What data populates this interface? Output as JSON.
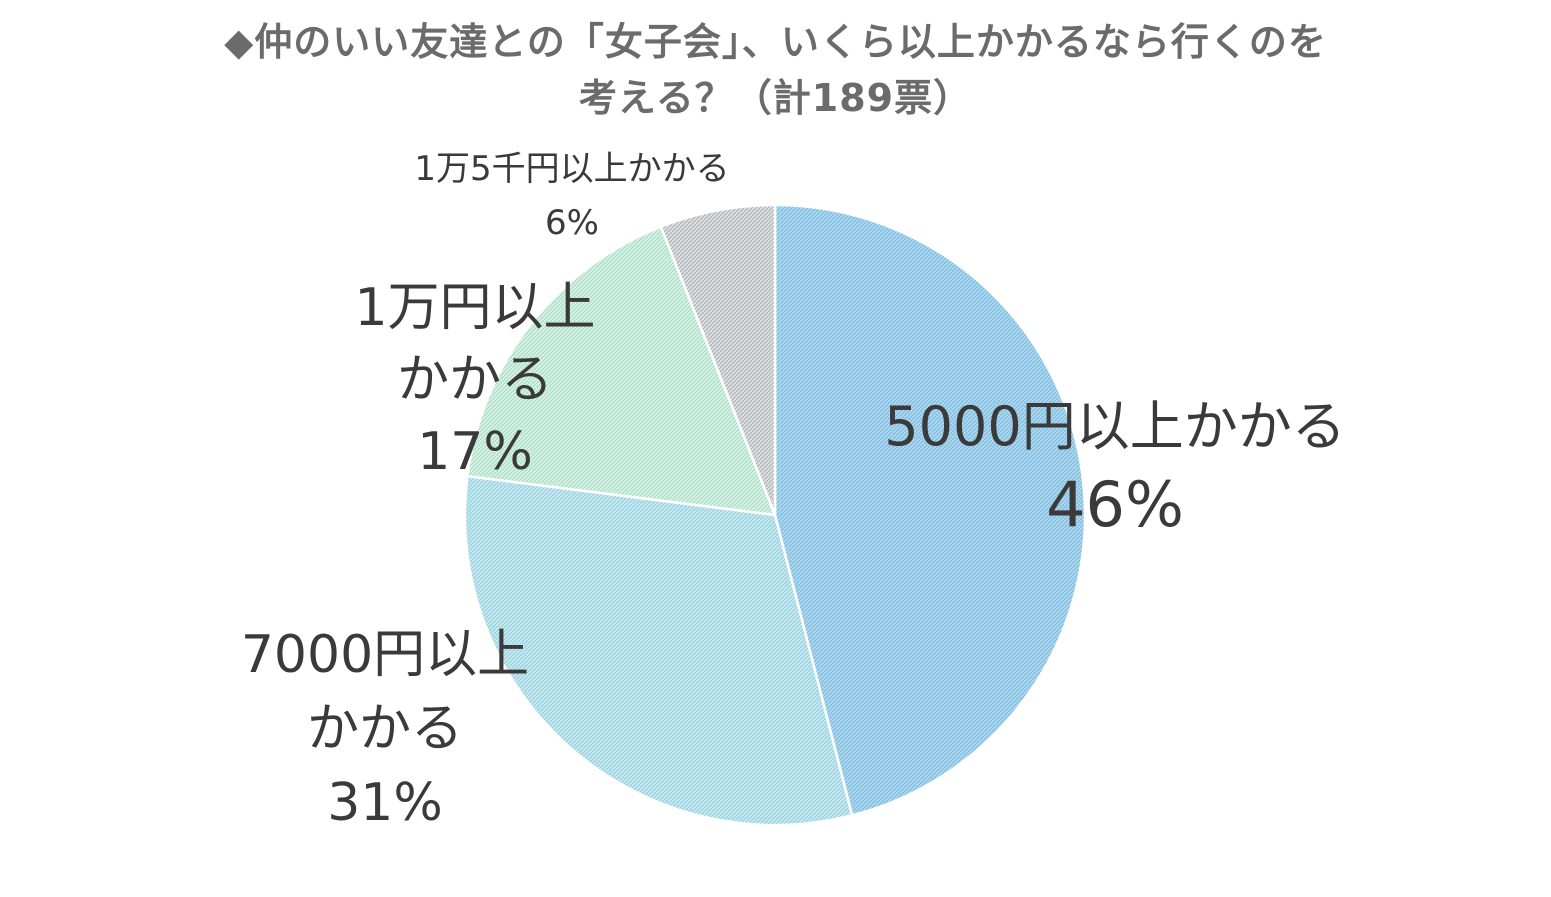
{
  "chart_data": {
    "type": "pie",
    "title_lines": [
      "◆仲のいい友達との「女子会」、いくら以上かかるなら行くのを",
      "考える？（計189票）"
    ],
    "slices": [
      {
        "label_lines": [
          "5000円以上かかる"
        ],
        "value": 46,
        "value_label": "46%",
        "color": "#a9d6ef"
      },
      {
        "label_lines": [
          "7000円以上",
          "かかる"
        ],
        "value": 31,
        "value_label": "31%",
        "color": "#bfe6ee"
      },
      {
        "label_lines": [
          "1万円以上",
          "かかる"
        ],
        "value": 17,
        "value_label": "17%",
        "color": "#cdeedd"
      },
      {
        "label_lines": [
          "1万5千円以上かかる"
        ],
        "value": 6,
        "value_label": "6%",
        "color": "#d5d8da"
      }
    ]
  }
}
